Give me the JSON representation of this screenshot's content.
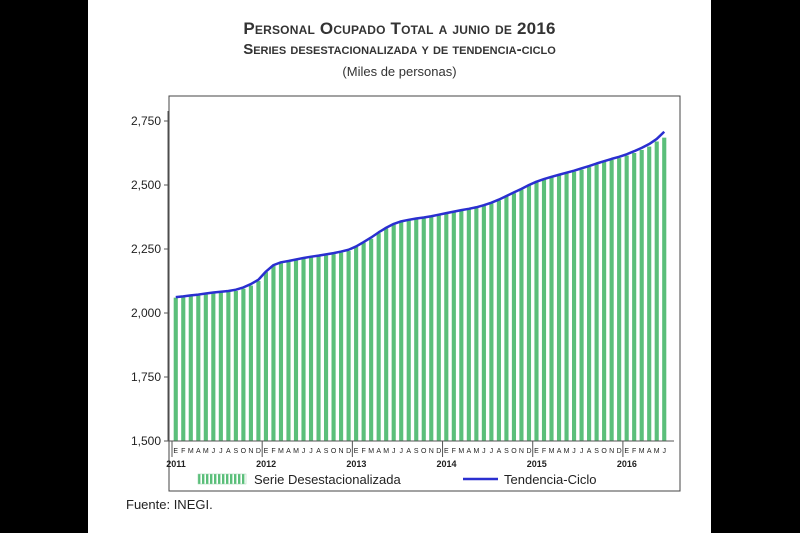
{
  "header": {
    "title": "Personal Ocupado Total a junio de 2016",
    "subtitle": "Series desestacionalizada y de tendencia-ciclo",
    "units": "(Miles de personas)"
  },
  "footer": {
    "source": "Fuente: INEGI."
  },
  "chart_data": {
    "type": "bar",
    "title": "Personal Ocupado Total a junio de 2016",
    "subtitle": "Series desestacionalizada y de tendencia-ciclo",
    "units": "(Miles de personas)",
    "ylim": [
      1500,
      2800
    ],
    "yticks": [
      1500,
      1750,
      2000,
      2250,
      2500,
      2750
    ],
    "ytick_labels": [
      "1,500",
      "1,750",
      "2,000",
      "2,250",
      "2,500",
      "2,750"
    ],
    "grid": false,
    "legend_position": "bottom",
    "month_labels": [
      "E",
      "F",
      "M",
      "A",
      "M",
      "J",
      "J",
      "A",
      "S",
      "O",
      "N",
      "D",
      "E",
      "F",
      "M",
      "A",
      "M",
      "J",
      "J",
      "A",
      "S",
      "O",
      "N",
      "D",
      "E",
      "F",
      "M",
      "A",
      "M",
      "J",
      "J",
      "A",
      "S",
      "O",
      "N",
      "D",
      "E",
      "F",
      "M",
      "A",
      "M",
      "J",
      "J",
      "A",
      "S",
      "O",
      "N",
      "D",
      "E",
      "F",
      "M",
      "A",
      "M",
      "J",
      "J",
      "A",
      "S",
      "O",
      "N",
      "D",
      "E",
      "F",
      "M",
      "A",
      "M",
      "J"
    ],
    "year_labels": [
      {
        "label": "2011",
        "index": 0
      },
      {
        "label": "2012",
        "index": 12
      },
      {
        "label": "2013",
        "index": 24
      },
      {
        "label": "2014",
        "index": 36
      },
      {
        "label": "2015",
        "index": 48
      },
      {
        "label": "2016",
        "index": 60
      }
    ],
    "series": [
      {
        "name": "Serie Desestacionalizada",
        "type": "bar",
        "color": "#5bbf7a",
        "values": [
          2060,
          2062,
          2066,
          2069,
          2072,
          2078,
          2082,
          2083,
          2086,
          2095,
          2107,
          2125,
          2160,
          2185,
          2195,
          2200,
          2205,
          2212,
          2218,
          2221,
          2225,
          2230,
          2236,
          2242,
          2258,
          2275,
          2290,
          2312,
          2330,
          2345,
          2356,
          2362,
          2367,
          2370,
          2375,
          2382,
          2388,
          2393,
          2400,
          2405,
          2410,
          2418,
          2428,
          2440,
          2455,
          2468,
          2482,
          2498,
          2512,
          2522,
          2530,
          2538,
          2545,
          2552,
          2560,
          2570,
          2580,
          2590,
          2598,
          2605,
          2615,
          2625,
          2637,
          2650,
          2670,
          2685
        ]
      },
      {
        "name": "Tendencia-Ciclo",
        "type": "line",
        "color": "#2a2fd0",
        "values": [
          2062,
          2065,
          2069,
          2072,
          2076,
          2080,
          2083,
          2086,
          2091,
          2100,
          2113,
          2130,
          2162,
          2187,
          2198,
          2203,
          2209,
          2215,
          2220,
          2224,
          2229,
          2234,
          2240,
          2247,
          2260,
          2277,
          2295,
          2315,
          2333,
          2348,
          2358,
          2364,
          2369,
          2373,
          2378,
          2384,
          2390,
          2396,
          2402,
          2407,
          2413,
          2421,
          2431,
          2443,
          2457,
          2471,
          2485,
          2500,
          2513,
          2523,
          2532,
          2540,
          2548,
          2556,
          2565,
          2574,
          2584,
          2593,
          2602,
          2610,
          2620,
          2632,
          2645,
          2660,
          2680,
          2708
        ]
      }
    ]
  }
}
